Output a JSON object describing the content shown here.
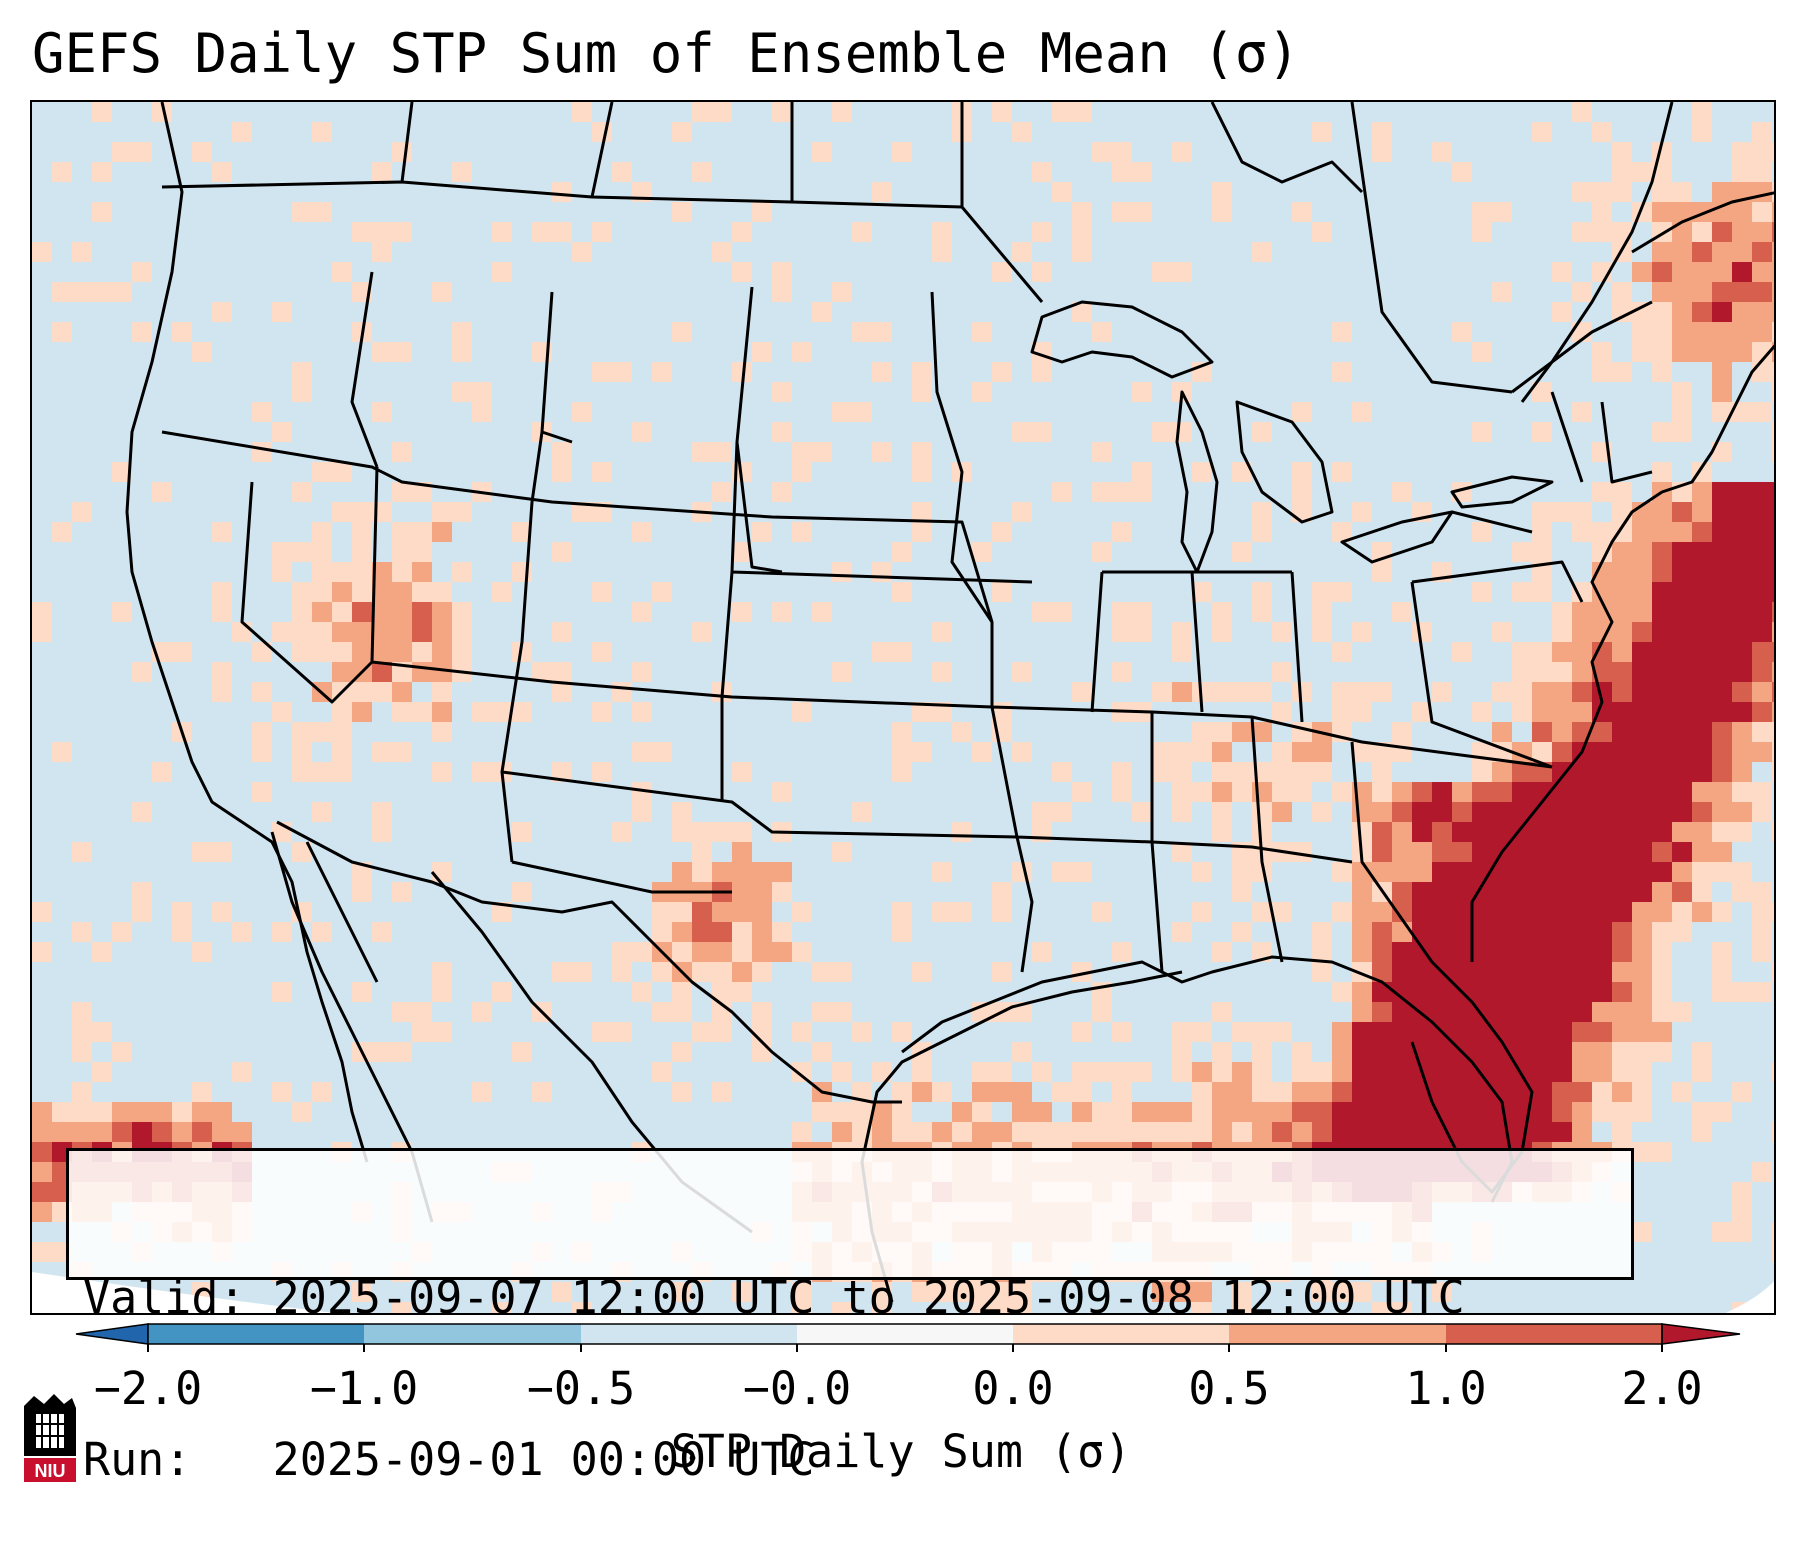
{
  "title": "GEFS Daily STP Sum of Ensemble Mean (σ)",
  "info": {
    "valid_label": "Valid:",
    "valid_value": "2025-09-07 12:00 UTC to 2025-09-08 12:00 UTC",
    "run_label": "Run:",
    "run_value": "2025-09-01 00:00 UTC"
  },
  "colorbar": {
    "label": "STP Daily Sum (σ)",
    "ticks": [
      "−2.0",
      "−1.0",
      "−0.5",
      "−0.0",
      "0.0",
      "0.5",
      "1.0",
      "2.0"
    ],
    "colors": [
      "#2166ac",
      "#4393c3",
      "#92c5de",
      "#d1e5f0",
      "#f7f7f7",
      "#fddbc7",
      "#f4a582",
      "#d6604d",
      "#b2182b"
    ],
    "extend": "both"
  },
  "map": {
    "projection": "Lambert Conformal, CONUS",
    "background_color": "#d1e5f0",
    "features": [
      "coastlines",
      "state-borders",
      "country-borders"
    ],
    "field": "STP daily sum anomaly (σ), ensemble mean"
  },
  "logo": {
    "name": "niu-logo",
    "text": "NIU"
  }
}
